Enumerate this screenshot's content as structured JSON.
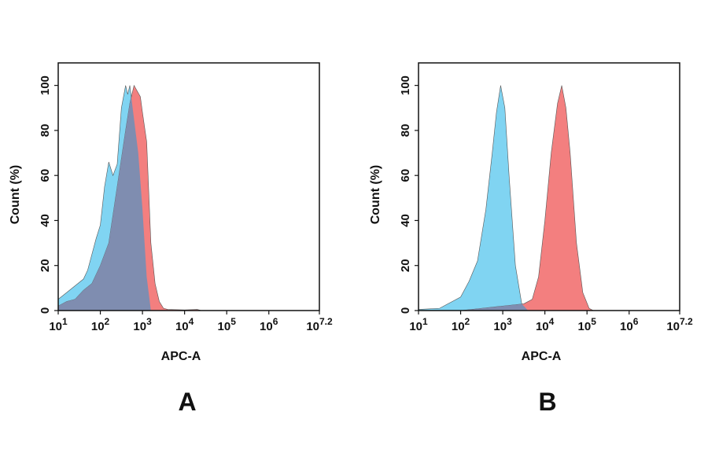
{
  "chart_data": [
    {
      "type": "area",
      "panel_label": "A",
      "xlabel": "APC-A",
      "ylabel": "Count (%)",
      "x_scale": "log10",
      "xlim_log10": [
        1,
        7.2
      ],
      "ylim": [
        0,
        110
      ],
      "x_tick_labels": [
        {
          "base": "10",
          "exp": "1"
        },
        {
          "base": "10",
          "exp": "2"
        },
        {
          "base": "10",
          "exp": "3"
        },
        {
          "base": "10",
          "exp": "4"
        },
        {
          "base": "10",
          "exp": "5"
        },
        {
          "base": "10",
          "exp": "6"
        },
        {
          "base": "10",
          "exp": "7.2"
        }
      ],
      "y_ticks": [
        "0",
        "20",
        "40",
        "60",
        "80",
        "100"
      ],
      "grid": false,
      "series": [
        {
          "color": "#80d4f2",
          "log10_x": [
            1.0,
            1.2,
            1.4,
            1.6,
            1.7,
            1.8,
            1.9,
            2.0,
            2.1,
            2.2,
            2.3,
            2.4,
            2.5,
            2.6,
            2.65,
            2.7,
            2.8,
            2.9,
            3.0,
            3.1,
            3.2
          ],
          "y": [
            5,
            8,
            11,
            14,
            18,
            25,
            32,
            38,
            55,
            66,
            60,
            65,
            90,
            100,
            96,
            100,
            85,
            70,
            45,
            15,
            0
          ]
        },
        {
          "color": "#f37f7f",
          "log10_x": [
            1.0,
            1.2,
            1.4,
            1.6,
            1.8,
            2.0,
            2.2,
            2.4,
            2.6,
            2.7,
            2.8,
            2.95,
            3.0,
            3.1,
            3.2,
            3.3,
            3.4,
            3.5,
            3.6,
            4.0,
            4.3,
            4.4
          ],
          "y": [
            2,
            4,
            5,
            9,
            12,
            20,
            30,
            55,
            80,
            92,
            100,
            95,
            88,
            75,
            30,
            12,
            4,
            1,
            0.5,
            0.3,
            0.5,
            0
          ]
        }
      ]
    },
    {
      "type": "area",
      "panel_label": "B",
      "xlabel": "APC-A",
      "ylabel": "Count (%)",
      "x_scale": "log10",
      "xlim_log10": [
        1,
        7.2
      ],
      "ylim": [
        0,
        110
      ],
      "x_tick_labels": [
        {
          "base": "10",
          "exp": "1"
        },
        {
          "base": "10",
          "exp": "2"
        },
        {
          "base": "10",
          "exp": "3"
        },
        {
          "base": "10",
          "exp": "4"
        },
        {
          "base": "10",
          "exp": "5"
        },
        {
          "base": "10",
          "exp": "6"
        },
        {
          "base": "10",
          "exp": "7.2"
        }
      ],
      "y_ticks": [
        "0",
        "20",
        "40",
        "60",
        "80",
        "100"
      ],
      "grid": false,
      "series": [
        {
          "color": "#80d4f2",
          "log10_x": [
            1.0,
            1.5,
            1.7,
            2.0,
            2.2,
            2.4,
            2.6,
            2.75,
            2.85,
            2.95,
            3.05,
            3.15,
            3.3,
            3.45,
            3.6
          ],
          "y": [
            0.5,
            1,
            3,
            6,
            13,
            22,
            45,
            70,
            88,
            100,
            90,
            60,
            20,
            3,
            0
          ]
        },
        {
          "color": "#f37f7f",
          "log10_x": [
            2.0,
            2.5,
            3.0,
            3.5,
            3.7,
            3.85,
            4.0,
            4.15,
            4.3,
            4.4,
            4.5,
            4.6,
            4.75,
            4.9,
            5.05,
            5.15
          ],
          "y": [
            0,
            1,
            2,
            3,
            5,
            15,
            40,
            70,
            92,
            100,
            90,
            70,
            30,
            8,
            1,
            0
          ]
        }
      ]
    }
  ],
  "overlap_color": "#7f8db0"
}
